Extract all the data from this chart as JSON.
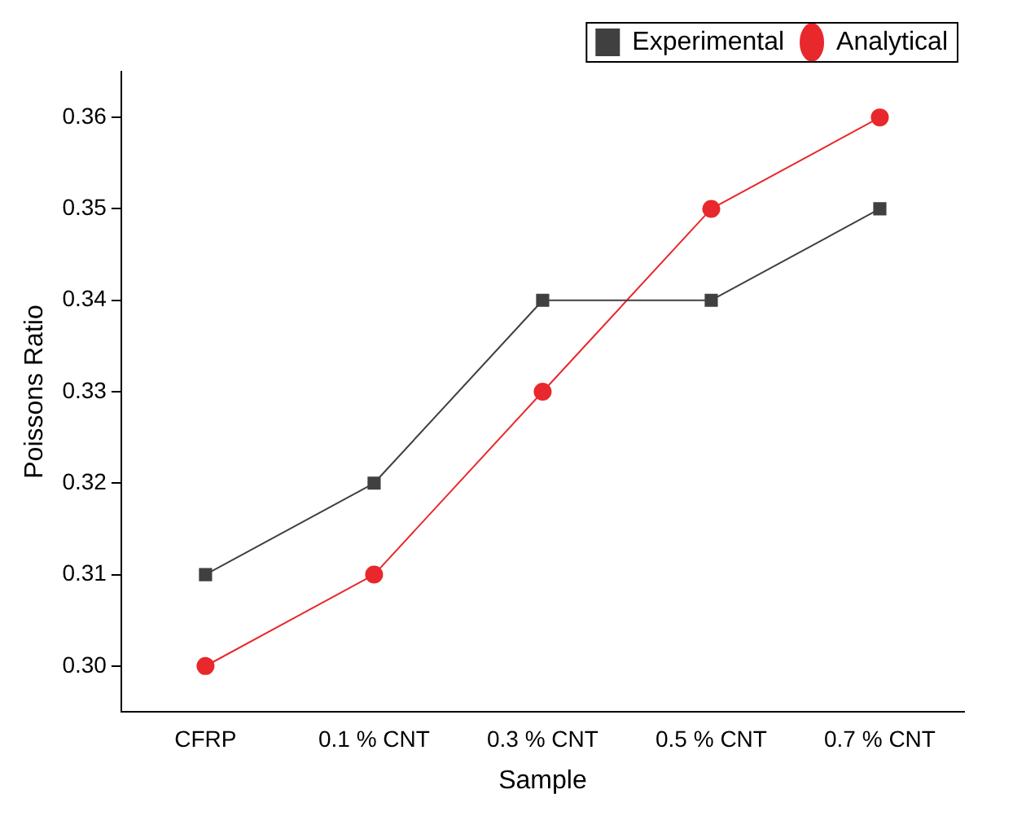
{
  "chart_data": {
    "type": "line",
    "xlabel": "Sample",
    "ylabel": "Poissons Ratio",
    "categories": [
      "CFRP",
      "0.1 % CNT",
      "0.3 % CNT",
      "0.5 % CNT",
      "0.7 % CNT"
    ],
    "series": [
      {
        "name": "Experimental",
        "color": "#404040",
        "marker": "square",
        "values": [
          0.31,
          0.32,
          0.34,
          0.34,
          0.35
        ]
      },
      {
        "name": "Analytical",
        "color": "#e8282c",
        "marker": "circle",
        "values": [
          0.3,
          0.31,
          0.33,
          0.35,
          0.36
        ]
      }
    ],
    "ylim": [
      0.295,
      0.365
    ],
    "yticks": [
      {
        "value": 0.3,
        "label": "0.30"
      },
      {
        "value": 0.31,
        "label": "0.31"
      },
      {
        "value": 0.32,
        "label": "0.32"
      },
      {
        "value": 0.33,
        "label": "0.33"
      },
      {
        "value": 0.34,
        "label": "0.34"
      },
      {
        "value": 0.35,
        "label": "0.35"
      },
      {
        "value": 0.36,
        "label": "0.36"
      }
    ],
    "grid": false,
    "legend": "top right",
    "line_style": "solid"
  }
}
